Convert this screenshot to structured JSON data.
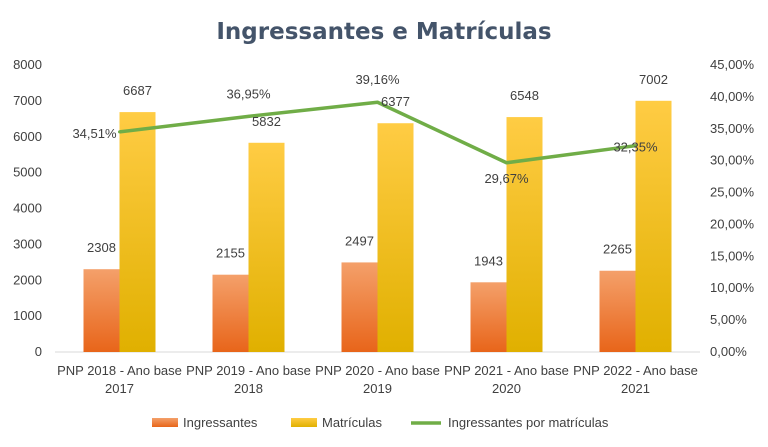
{
  "chart_data": {
    "type": "bar",
    "title": "Ingressantes e Matrículas",
    "categories": [
      [
        "PNP 2018 - Ano base",
        "2017"
      ],
      [
        "PNP 2019 - Ano base",
        "2018"
      ],
      [
        "PNP 2020 - Ano base",
        "2019"
      ],
      [
        "PNP 2021 - Ano base",
        "2020"
      ],
      [
        "PNP 2022 - Ano base",
        "2021"
      ]
    ],
    "series": [
      {
        "name": "Ingressantes",
        "type": "bar",
        "axis": "left",
        "values": [
          2308,
          2155,
          2497,
          1943,
          2265
        ],
        "labels": [
          "2308",
          "2155",
          "2497",
          "1943",
          "2265"
        ],
        "color": "#ed7d31"
      },
      {
        "name": "Matrículas",
        "type": "bar",
        "axis": "left",
        "values": [
          6687,
          5832,
          6377,
          6548,
          7002
        ],
        "labels": [
          "6687",
          "5832",
          "6377",
          "6548",
          "7002"
        ],
        "color": "#ffc000"
      },
      {
        "name": "Ingressantes por matrículas",
        "type": "line",
        "axis": "right",
        "values": [
          34.51,
          36.95,
          39.16,
          29.67,
          32.35
        ],
        "labels": [
          "34,51%",
          "36,95%",
          "39,16%",
          "29,67%",
          "32,35%"
        ],
        "color": "#70ad47"
      }
    ],
    "y_left": {
      "min": 0,
      "max": 8000,
      "step": 1000,
      "tick_labels": [
        "0",
        "1000",
        "2000",
        "3000",
        "4000",
        "5000",
        "6000",
        "7000",
        "8000"
      ]
    },
    "y_right": {
      "min": 0,
      "max": 45,
      "step": 5,
      "tick_labels": [
        "0,00%",
        "5,00%",
        "10,00%",
        "15,00%",
        "20,00%",
        "25,00%",
        "30,00%",
        "35,00%",
        "40,00%",
        "45,00%"
      ]
    },
    "grid": false,
    "legend_position": "bottom"
  }
}
